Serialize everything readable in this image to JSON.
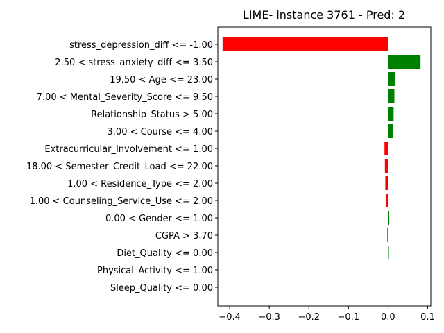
{
  "chart_data": {
    "type": "bar",
    "orientation": "horizontal",
    "title": "LIME- instance 3761 - Pred: 2",
    "xlabel": "",
    "ylabel": "",
    "xlim": [
      -0.43,
      0.108
    ],
    "xticks": [
      -0.4,
      -0.3,
      -0.2,
      -0.1,
      0.0,
      0.1
    ],
    "xtick_labels": [
      "−0.4",
      "−0.3",
      "−0.2",
      "−0.1",
      "0.0",
      "0.1"
    ],
    "grid": false,
    "categories": [
      "stress_depression_diff <= -1.00",
      "2.50 < stress_anxiety_diff <= 3.50",
      "19.50 < Age <= 23.00",
      "7.00 < Mental_Severity_Score <= 9.50",
      "Relationship_Status > 5.00",
      "3.00 < Course <= 4.00",
      "Extracurricular_Involvement <= 1.00",
      "18.00 < Semester_Credit_Load <= 22.00",
      "1.00 < Residence_Type <= 2.00",
      "1.00 < Counseling_Service_Use <= 2.00",
      "0.00 < Gender <= 1.00",
      "CGPA > 3.70",
      "Diet_Quality <= 0.00",
      "Physical_Activity <= 1.00",
      "Sleep_Quality <= 0.00"
    ],
    "values": [
      -0.418,
      0.082,
      0.018,
      0.016,
      0.014,
      0.012,
      -0.009,
      -0.008,
      -0.007,
      -0.006,
      0.003,
      -0.002,
      0.002,
      0.0,
      0.0
    ],
    "colors": {
      "positive": "#008000",
      "negative": "#ff0000"
    }
  }
}
